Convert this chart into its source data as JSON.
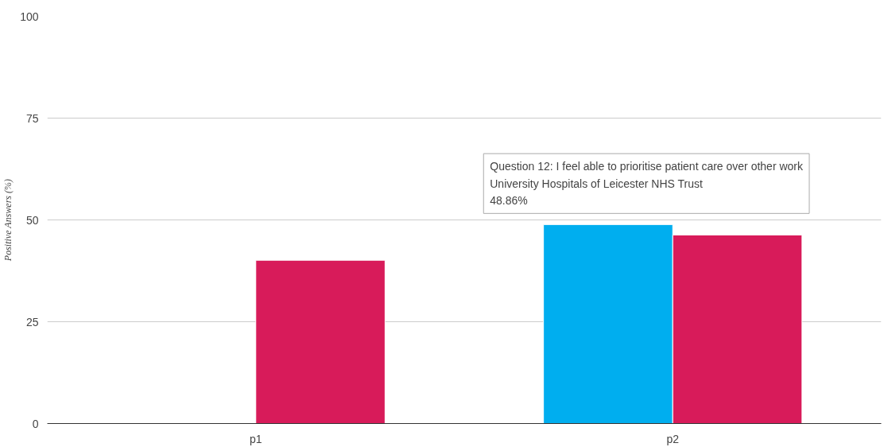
{
  "chart_data": {
    "type": "bar",
    "ylabel": "Positive Answers (%)",
    "categories": [
      "p1",
      "p2"
    ],
    "series": [
      {
        "color": "#00aeef",
        "values": [
          null,
          48.86
        ]
      },
      {
        "color": "#d81b5a",
        "values": [
          40.1,
          46.3
        ]
      }
    ],
    "ylim": [
      0,
      100
    ],
    "yticks": [
      0,
      25,
      50,
      75,
      100
    ],
    "grid": "y",
    "annotations": [
      {
        "text": "Question 12: I feel able to prioritise patient care over other work\nUniversity Hospitals of Leicester NHS Trust\n48.86%",
        "x": "p2",
        "y": 48.86
      }
    ]
  }
}
